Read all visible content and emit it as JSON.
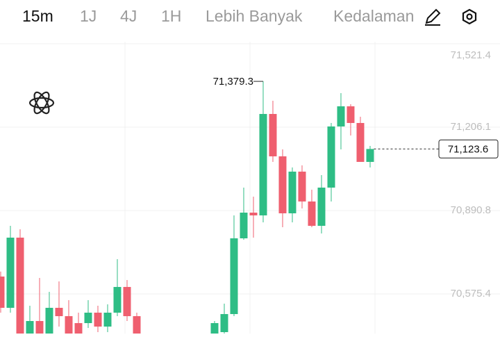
{
  "toolbar": {
    "tabs": [
      "15m",
      "1J",
      "4J",
      "1H",
      "Lebih Banyak",
      "Kedalaman"
    ],
    "active_index": 0
  },
  "chart_data": {
    "type": "candlestick",
    "x": [
      0,
      1,
      2,
      3,
      4,
      5,
      6,
      7,
      8,
      9,
      10,
      11,
      12,
      13,
      14,
      22,
      23,
      24,
      25,
      26,
      27,
      28,
      29,
      30,
      31,
      32,
      33,
      34,
      35,
      36,
      37,
      38
    ],
    "open": [
      70641.2,
      70522.9,
      70788.3,
      70410.0,
      70473.0,
      70410.0,
      70522.9,
      70491.4,
      70465.1,
      70465.1,
      70504.6,
      70452.0,
      70504.6,
      70601.8,
      70491.4,
      70420.0,
      70431.0,
      70499.3,
      70785.7,
      70882.9,
      70872.4,
      71256.0,
      71095.7,
      70880.3,
      71037.9,
      70925.0,
      70833.0,
      70977.5,
      71208.7,
      71284.9,
      71221.9,
      71074.7
    ],
    "high": [
      70660.0,
      70833.0,
      70819.9,
      70530.8,
      70635.9,
      70583.4,
      70622.8,
      70551.9,
      70504.6,
      70551.9,
      70530.8,
      70536.1,
      70706.9,
      70628.0,
      70504.6,
      70473.0,
      70538.7,
      70872.4,
      70977.5,
      70943.3,
      71379.3,
      71305.9,
      71122.0,
      71053.7,
      71061.6,
      70969.6,
      71024.8,
      71221.9,
      71334.8,
      71292.8,
      71245.5,
      71135.2
    ],
    "low": [
      70504.6,
      70504.6,
      70370.0,
      70390.0,
      70380.0,
      70395.0,
      70452.0,
      70400.0,
      70405.0,
      70446.8,
      70431.0,
      70431.0,
      70491.4,
      70473.0,
      70395.0,
      70405.0,
      70420.0,
      70491.4,
      70780.4,
      70788.3,
      70846.1,
      71074.7,
      70827.7,
      70846.1,
      70898.7,
      70827.7,
      70804.1,
      70925.0,
      71122.0,
      71174.6,
      71074.7,
      71053.7
    ],
    "close": [
      70522.9,
      70788.3,
      70390.0,
      70473.0,
      70400.0,
      70522.9,
      70491.4,
      70415.0,
      70420.0,
      70504.6,
      70452.0,
      70504.6,
      70601.8,
      70491.4,
      70410.0,
      70465.1,
      70499.3,
      70785.7,
      70882.9,
      70872.4,
      71256.0,
      71095.7,
      70880.3,
      71037.9,
      70925.0,
      70833.0,
      70977.5,
      71208.7,
      71284.9,
      71221.9,
      71074.7,
      71123.6
    ],
    "up_color": "#2ebd85",
    "down_color": "#ef5f6f",
    "xlim": [
      -0.07,
      51.36
    ],
    "ylim": [
      70425.7,
      71529.3
    ],
    "yticks": [
      {
        "value": 70575.4,
        "label": "70,575.4"
      },
      {
        "value": 70890.8,
        "label": "70,890.8"
      },
      {
        "value": 71206.1,
        "label": "71,206.1"
      },
      {
        "value": 71521.4,
        "label": "71,521.4"
      }
    ],
    "grid": true,
    "max_label": {
      "value": 71379.3,
      "label": "71,379.3"
    },
    "last_price": {
      "value": 71123.6,
      "label": "71,123.6"
    }
  }
}
